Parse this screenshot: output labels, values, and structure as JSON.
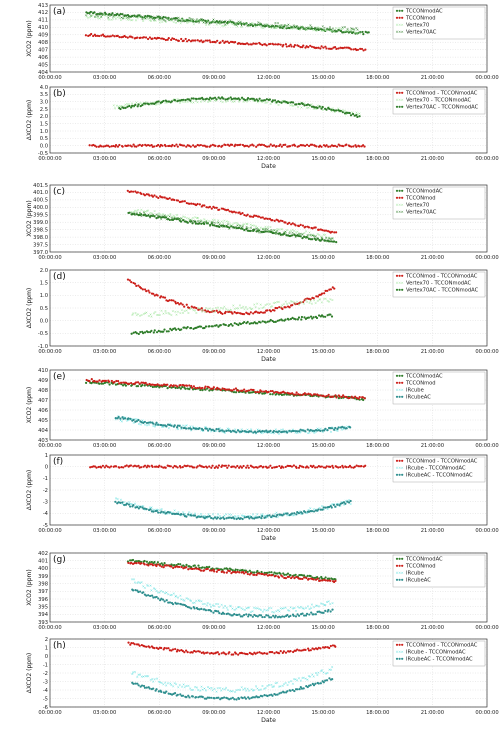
{
  "x_tick_labels": [
    "00:00:00",
    "03:00:00",
    "06:00:00",
    "09:00:00",
    "12:00:00",
    "15:00:00",
    "18:00:00",
    "21:00:00",
    "00:00:00"
  ],
  "colors": {
    "red": "#cc1f1a",
    "green": "#2f7d2a",
    "lightgreen": "#9ee49a",
    "cyan": "#66e0e0",
    "teal": "#2f8f8f"
  },
  "chart_data": [
    {
      "id": "a",
      "type": "scatter",
      "panel_label": "(a)",
      "ylabel": "XCO2 (ppm)",
      "xlabel": "",
      "ylim": [
        404,
        413
      ],
      "yticks": [
        404,
        405,
        406,
        407,
        408,
        409,
        410,
        411,
        412,
        413
      ],
      "xlim_hours": [
        0,
        24
      ],
      "series": [
        {
          "name": "TCCONmodAC",
          "color": "#2f7d2a",
          "marker": "dot",
          "start": 2.0,
          "end": 17.5,
          "values_start": 412.0,
          "values_end": 409.2,
          "mode": "linear"
        },
        {
          "name": "TCCONmod",
          "color": "#cc1f1a",
          "marker": "dot",
          "start": 2.0,
          "end": 17.3,
          "values_start": 409.0,
          "values_end": 407.0,
          "mode": "linear"
        },
        {
          "name": "Vertex70",
          "color": "#9ee49a",
          "marker": "x",
          "start": 2.0,
          "end": 17.0,
          "values_start": 411.5,
          "values_end": 409.5,
          "mode": "linear"
        },
        {
          "name": "Vertex70AC",
          "color": "#2f7d2a",
          "marker": "x",
          "start": 2.0,
          "end": 17.0,
          "values_start": 411.8,
          "values_end": 409.6,
          "mode": "linear"
        }
      ],
      "legend_position": "top-right"
    },
    {
      "id": "b",
      "type": "scatter",
      "panel_label": "(b)",
      "ylabel": "ΔXCO2 (ppm)",
      "xlabel": "Date",
      "ylim": [
        -0.5,
        4.0
      ],
      "yticks": [
        -0.5,
        0.0,
        0.5,
        1.0,
        1.5,
        2.0,
        2.5,
        3.0,
        3.5,
        4.0
      ],
      "xlim_hours": [
        0,
        24
      ],
      "series": [
        {
          "name": "TCCONmod - TCCONmodAC",
          "color": "#cc1f1a",
          "marker": "dot",
          "start": 2.2,
          "end": 17.3,
          "values_start": 0.0,
          "values_end": 0.0,
          "mode": "linear"
        },
        {
          "name": "Vertex70 - TCCONmodAC",
          "color": "#9ee49a",
          "marker": "x",
          "start": 3.5,
          "end": 17.0,
          "values_start": 2.6,
          "values_end": 2.1,
          "mode": "hump",
          "peak": 3.1
        },
        {
          "name": "Vertex70AC - TCCONmodAC",
          "color": "#2f7d2a",
          "marker": "dot",
          "start": 3.8,
          "end": 17.0,
          "values_start": 2.5,
          "values_end": 2.0,
          "mode": "hump",
          "peak": 3.2
        }
      ],
      "legend_position": "top-right"
    },
    {
      "id": "c",
      "type": "scatter",
      "panel_label": "(c)",
      "ylabel": "XCO2 (ppm)",
      "xlabel": "",
      "ylim": [
        397.0,
        401.5
      ],
      "yticks": [
        397.0,
        397.5,
        398.0,
        398.5,
        399.0,
        399.5,
        400.0,
        400.5,
        401.0,
        401.5
      ],
      "xlim_hours": [
        0,
        24
      ],
      "series": [
        {
          "name": "TCCONmodAC",
          "color": "#2f7d2a",
          "marker": "dot",
          "start": 4.3,
          "end": 15.7,
          "values_start": 399.6,
          "values_end": 397.7,
          "mode": "linear"
        },
        {
          "name": "TCCONmod",
          "color": "#cc1f1a",
          "marker": "dot",
          "start": 4.3,
          "end": 15.7,
          "values_start": 401.1,
          "values_end": 398.3,
          "mode": "linear"
        },
        {
          "name": "Vertex70",
          "color": "#9ee49a",
          "marker": "x",
          "start": 4.5,
          "end": 15.5,
          "values_start": 399.8,
          "values_end": 398.0,
          "mode": "linear"
        },
        {
          "name": "Vertex70AC",
          "color": "#2f7d2a",
          "marker": "x",
          "start": 4.5,
          "end": 15.5,
          "values_start": 399.6,
          "values_end": 397.8,
          "mode": "linear"
        }
      ],
      "legend_position": "top-right"
    },
    {
      "id": "d",
      "type": "scatter",
      "panel_label": "(d)",
      "ylabel": "ΔXCO2 (ppm)",
      "xlabel": "Date",
      "ylim": [
        -1.0,
        2.0
      ],
      "yticks": [
        -1.0,
        -0.5,
        0.0,
        0.5,
        1.0,
        1.5,
        2.0
      ],
      "xlim_hours": [
        0,
        24
      ],
      "series": [
        {
          "name": "TCCONmod - TCCONmodAC",
          "color": "#cc1f1a",
          "marker": "dot",
          "start": 4.3,
          "end": 15.6,
          "values_start": 1.6,
          "values_end": 1.3,
          "mode": "valley",
          "peak": 0.3
        },
        {
          "name": "Vertex70 - TCCONmodAC",
          "color": "#9ee49a",
          "marker": "x",
          "start": 4.5,
          "end": 15.5,
          "values_start": 0.2,
          "values_end": 0.8,
          "mode": "linear"
        },
        {
          "name": "Vertex70AC - TCCONmodAC",
          "color": "#2f7d2a",
          "marker": "dot",
          "start": 4.5,
          "end": 15.5,
          "values_start": -0.5,
          "values_end": 0.2,
          "mode": "linear"
        }
      ],
      "legend_position": "top-right"
    },
    {
      "id": "e",
      "type": "scatter",
      "panel_label": "(e)",
      "ylabel": "XCO2 (ppm)",
      "xlabel": "",
      "ylim": [
        403,
        410
      ],
      "yticks": [
        403,
        404,
        405,
        406,
        407,
        408,
        409,
        410
      ],
      "xlim_hours": [
        0,
        24
      ],
      "series": [
        {
          "name": "TCCONmodAC",
          "color": "#2f7d2a",
          "marker": "dot",
          "start": 2.0,
          "end": 17.3,
          "values_start": 408.8,
          "values_end": 407.1,
          "mode": "linear"
        },
        {
          "name": "TCCONmod",
          "color": "#cc1f1a",
          "marker": "dot",
          "start": 2.0,
          "end": 17.3,
          "values_start": 409.0,
          "values_end": 407.2,
          "mode": "linear"
        },
        {
          "name": "IRcube",
          "color": "#66e0e0",
          "marker": "x",
          "start": 3.6,
          "end": 16.5,
          "values_start": 405.2,
          "values_end": 404.2,
          "mode": "valley",
          "peak": 403.9
        },
        {
          "name": "IRcubeAC",
          "color": "#2f8f8f",
          "marker": "dot",
          "start": 3.6,
          "end": 16.5,
          "values_start": 405.3,
          "values_end": 404.3,
          "mode": "valley",
          "peak": 403.9
        }
      ],
      "legend_position": "top-right"
    },
    {
      "id": "f",
      "type": "scatter",
      "panel_label": "(f)",
      "ylabel": "ΔXCO2 (ppm)",
      "xlabel": "Date",
      "ylim": [
        -5,
        1
      ],
      "yticks": [
        -5,
        -4,
        -3,
        -2,
        -1,
        0,
        1
      ],
      "xlim_hours": [
        0,
        24
      ],
      "series": [
        {
          "name": "TCCONmod - TCCONmodAC",
          "color": "#cc1f1a",
          "marker": "dot",
          "start": 2.2,
          "end": 17.3,
          "values_start": 0.0,
          "values_end": 0.0,
          "mode": "linear"
        },
        {
          "name": "IRcube - TCCONmodAC",
          "color": "#66e0e0",
          "marker": "x",
          "start": 3.6,
          "end": 16.5,
          "values_start": -2.9,
          "values_end": -3.0,
          "mode": "valley",
          "peak": -4.3
        },
        {
          "name": "IRcubeAC - TCCONmodAC",
          "color": "#2f8f8f",
          "marker": "dot",
          "start": 3.6,
          "end": 16.5,
          "values_start": -3.0,
          "values_end": -3.0,
          "mode": "valley",
          "peak": -4.4
        }
      ],
      "legend_position": "top-right"
    },
    {
      "id": "g",
      "type": "scatter",
      "panel_label": "(g)",
      "ylabel": "XCO2 (ppm)",
      "xlabel": "",
      "ylim": [
        393,
        402
      ],
      "yticks": [
        393,
        394,
        395,
        396,
        397,
        398,
        399,
        400,
        401,
        402
      ],
      "xlim_hours": [
        0,
        24
      ],
      "series": [
        {
          "name": "TCCONmodAC",
          "color": "#2f7d2a",
          "marker": "dot",
          "start": 4.3,
          "end": 15.7,
          "values_start": 401.0,
          "values_end": 398.6,
          "mode": "linear"
        },
        {
          "name": "TCCONmod",
          "color": "#cc1f1a",
          "marker": "dot",
          "start": 4.3,
          "end": 15.7,
          "values_start": 400.7,
          "values_end": 398.3,
          "mode": "linear"
        },
        {
          "name": "IRcube",
          "color": "#66e0e0",
          "marker": "x",
          "start": 4.5,
          "end": 15.5,
          "values_start": 398.5,
          "values_end": 395.5,
          "mode": "valley",
          "peak": 394.8
        },
        {
          "name": "IRcubeAC",
          "color": "#2f8f8f",
          "marker": "dot",
          "start": 4.5,
          "end": 15.5,
          "values_start": 397.3,
          "values_end": 394.5,
          "mode": "valley",
          "peak": 394.0
        }
      ],
      "legend_position": "top-right"
    },
    {
      "id": "h",
      "type": "scatter",
      "panel_label": "(h)",
      "ylabel": "ΔXCO2 (ppm)",
      "xlabel": "Date",
      "ylim": [
        -6,
        2
      ],
      "yticks": [
        -6,
        -5,
        -4,
        -3,
        -2,
        -1,
        0,
        1,
        2
      ],
      "xlim_hours": [
        0,
        24
      ],
      "series": [
        {
          "name": "TCCONmod - TCCONmodAC",
          "color": "#cc1f1a",
          "marker": "dot",
          "start": 4.3,
          "end": 15.7,
          "values_start": 1.5,
          "values_end": 1.2,
          "mode": "valley",
          "peak": 0.3
        },
        {
          "name": "IRcube - TCCONmodAC",
          "color": "#66e0e0",
          "marker": "x",
          "start": 4.5,
          "end": 15.5,
          "values_start": -2.0,
          "values_end": -1.5,
          "mode": "valley",
          "peak": -4.0
        },
        {
          "name": "IRcubeAC - TCCONmodAC",
          "color": "#2f8f8f",
          "marker": "dot",
          "start": 4.5,
          "end": 15.5,
          "values_start": -3.2,
          "values_end": -2.6,
          "mode": "valley",
          "peak": -5.0
        }
      ],
      "legend_position": "top-right"
    }
  ]
}
